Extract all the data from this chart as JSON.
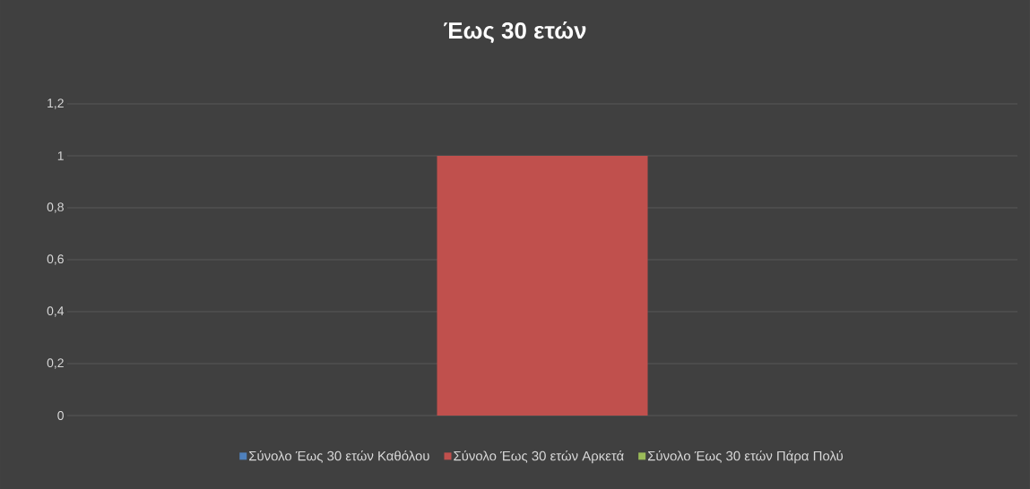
{
  "chart_data": {
    "type": "bar",
    "title": "Έως 30 ετών",
    "categories": [
      null
    ],
    "series": [
      {
        "name": "Σύνολο Έως 30 ετών Καθόλου",
        "color": "#4f81bd",
        "values": [
          0
        ]
      },
      {
        "name": "Σύνολο Έως 30 ετών Αρκετά",
        "color": "#c0504d",
        "values": [
          1
        ]
      },
      {
        "name": "Σύνολο Έως 30 ετών Πάρα Πολύ",
        "color": "#9bbb59",
        "values": [
          0
        ]
      }
    ],
    "ylim": [
      0,
      1.2
    ],
    "yticks": [
      0,
      {
        "value": 0.2,
        "label": "0,2"
      },
      {
        "value": 0.4,
        "label": "0,4"
      },
      {
        "value": 0.6,
        "label": "0,6"
      },
      {
        "value": 0.8,
        "label": "0,8"
      },
      1,
      {
        "value": 1.2,
        "label": "1,2"
      }
    ],
    "grid": "y",
    "legend": "bottom"
  }
}
